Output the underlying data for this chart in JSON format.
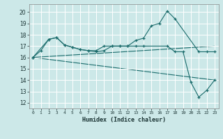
{
  "title": "",
  "xlabel": "Humidex (Indice chaleur)",
  "bg_color": "#cce8e8",
  "grid_color": "#ffffff",
  "line_color": "#1a6b6b",
  "xlim": [
    -0.5,
    23.5
  ],
  "ylim": [
    11.5,
    20.7
  ],
  "yticks": [
    12,
    13,
    14,
    15,
    16,
    17,
    18,
    19,
    20
  ],
  "xticks": [
    0,
    1,
    2,
    3,
    4,
    5,
    6,
    7,
    8,
    9,
    10,
    11,
    12,
    13,
    14,
    15,
    16,
    17,
    18,
    19,
    20,
    21,
    22,
    23
  ],
  "series": [
    {
      "x": [
        0,
        1,
        2,
        3,
        4,
        5,
        6,
        7,
        8,
        9,
        10,
        11,
        12,
        13,
        14,
        15,
        16,
        17,
        18,
        21,
        22,
        23
      ],
      "y": [
        16.0,
        16.6,
        17.6,
        17.75,
        17.1,
        16.9,
        16.7,
        16.6,
        16.6,
        17.0,
        17.0,
        17.0,
        17.0,
        17.5,
        17.7,
        18.8,
        19.0,
        20.1,
        19.4,
        16.5,
        16.5,
        16.5
      ],
      "has_markers": true
    },
    {
      "x": [
        0,
        2,
        3,
        4,
        5,
        6,
        7,
        8,
        9,
        10,
        11,
        12,
        13,
        14,
        17,
        18,
        19,
        20,
        21,
        22,
        23
      ],
      "y": [
        16.0,
        17.6,
        17.75,
        17.1,
        16.9,
        16.7,
        16.6,
        16.5,
        16.6,
        17.0,
        17.0,
        17.0,
        17.0,
        17.0,
        17.0,
        16.5,
        16.5,
        13.8,
        12.5,
        13.1,
        14.0
      ],
      "has_markers": true
    },
    {
      "x": [
        0,
        23
      ],
      "y": [
        16.0,
        17.0
      ],
      "has_markers": false
    },
    {
      "x": [
        0,
        23
      ],
      "y": [
        16.0,
        14.0
      ],
      "has_markers": false
    }
  ]
}
